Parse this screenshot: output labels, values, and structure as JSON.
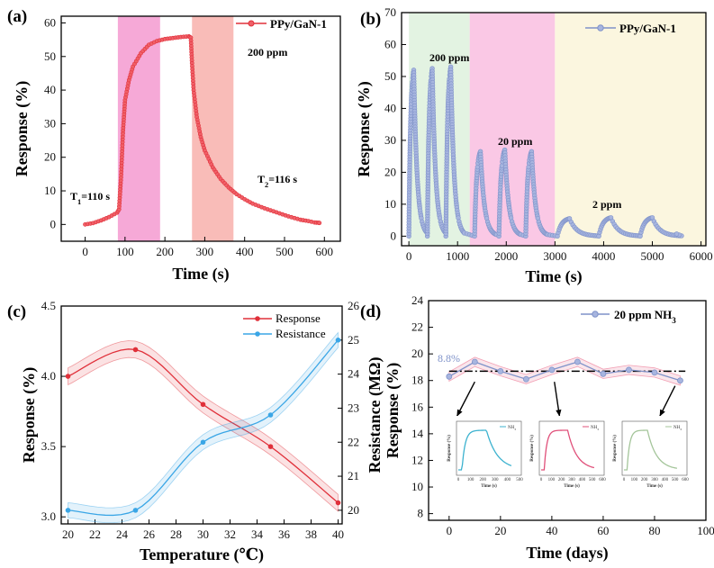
{
  "colors": {
    "ppy": "#e0303a",
    "ppy_b": "#7f92c9",
    "response": "#e0303a",
    "resistance": "#3aa6e6",
    "inset1": "#3cb2cf",
    "inset2": "#e0507a",
    "inset3": "#a4c59a"
  },
  "chart_data": [
    {
      "id": "a",
      "panel_label": "(a)",
      "type": "line",
      "xlabel": "Time (s)",
      "ylabel": "Response (%)",
      "xlim": [
        -60,
        640
      ],
      "ylim": [
        -5,
        62
      ],
      "xticks": [
        "0",
        "100",
        "200",
        "300",
        "400",
        "500",
        "600"
      ],
      "yticks": [
        "0",
        "10",
        "20",
        "30",
        "40",
        "50",
        "60"
      ],
      "legend": "PPy/GaN-1",
      "legend_position": "top-right",
      "annotations": {
        "conc": "200 ppm",
        "t1": "T",
        "t1_sub": "1",
        "t1_rest": "=110 s",
        "t2": "T",
        "t2_sub": "2",
        "t2_rest": "=116 s"
      },
      "shaded": [
        {
          "from": 82,
          "to": 188,
          "color": "pink"
        },
        {
          "from": 268,
          "to": 372,
          "color": "salmon"
        }
      ],
      "series": [
        {
          "name": "PPy/GaN-1",
          "points": [
            [
              0,
              0
            ],
            [
              20,
              0.4
            ],
            [
              40,
              1.2
            ],
            [
              60,
              2.2
            ],
            [
              80,
              3.5
            ],
            [
              85,
              4.5
            ],
            [
              90,
              14
            ],
            [
              95,
              28
            ],
            [
              100,
              37
            ],
            [
              110,
              43
            ],
            [
              120,
              47
            ],
            [
              140,
              51
            ],
            [
              160,
              53.5
            ],
            [
              180,
              54.6
            ],
            [
              200,
              55.2
            ],
            [
              220,
              55.5
            ],
            [
              240,
              55.8
            ],
            [
              260,
              56
            ],
            [
              265,
              55.6
            ],
            [
              268,
              48
            ],
            [
              272,
              40
            ],
            [
              280,
              32
            ],
            [
              290,
              26
            ],
            [
              300,
              22
            ],
            [
              320,
              17
            ],
            [
              340,
              13.5
            ],
            [
              360,
              11
            ],
            [
              380,
              9
            ],
            [
              400,
              7.5
            ],
            [
              420,
              6.2
            ],
            [
              450,
              4.8
            ],
            [
              480,
              3.6
            ],
            [
              510,
              2.4
            ],
            [
              540,
              1.4
            ],
            [
              560,
              1
            ],
            [
              575,
              0.6
            ],
            [
              585,
              0.5
            ],
            [
              590,
              0.4
            ]
          ]
        }
      ]
    },
    {
      "id": "b",
      "panel_label": "(b)",
      "type": "line",
      "xlabel": "Time (s)",
      "ylabel": "Response (%)",
      "xlim": [
        -150,
        6100
      ],
      "ylim": [
        -3,
        70
      ],
      "xticks": [
        "0",
        "1000",
        "2000",
        "3000",
        "4000",
        "5000",
        "6000"
      ],
      "yticks": [
        "0",
        "10",
        "20",
        "30",
        "40",
        "50",
        "60",
        "70"
      ],
      "legend": "PPy/GaN-1",
      "legend_position": "top-right",
      "annotations": {
        "c1": "200 ppm",
        "c2": "20 ppm",
        "c3": "2 ppm"
      },
      "shaded": [
        {
          "from": 0,
          "to": 1250,
          "color": "green"
        },
        {
          "from": 1250,
          "to": 3000,
          "color": "pink"
        },
        {
          "from": 3000,
          "to": 6100,
          "color": "yellow"
        }
      ],
      "cycles": [
        {
          "start": 0,
          "rise": 100,
          "fall": 280,
          "peak": 52
        },
        {
          "start": 380,
          "rise": 100,
          "fall": 280,
          "peak": 52.5
        },
        {
          "start": 760,
          "rise": 100,
          "fall": 280,
          "peak": 53
        },
        {
          "start": 1350,
          "rise": 120,
          "fall": 330,
          "peak": 26.5
        },
        {
          "start": 1850,
          "rise": 120,
          "fall": 330,
          "peak": 27
        },
        {
          "start": 2400,
          "rise": 120,
          "fall": 330,
          "peak": 26.5
        },
        {
          "start": 3050,
          "rise": 250,
          "fall": 600,
          "peak": 5.5
        },
        {
          "start": 3900,
          "rise": 250,
          "fall": 600,
          "peak": 5.8
        },
        {
          "start": 4750,
          "rise": 250,
          "fall": 600,
          "peak": 5.8
        }
      ],
      "series": [
        {
          "name": "PPy/GaN-1"
        }
      ]
    },
    {
      "id": "c",
      "panel_label": "(c)",
      "type": "line",
      "xlabel": "Temperature (℃)",
      "ylabel": "Response (%)",
      "y2label": "Resistance (MΩ)",
      "xlim": [
        19.5,
        40.3
      ],
      "ylim": [
        2.95,
        4.5
      ],
      "y2lim": [
        19.6,
        26
      ],
      "xticks": [
        "20",
        "22",
        "24",
        "26",
        "28",
        "30",
        "32",
        "34",
        "36",
        "38",
        "40"
      ],
      "yticks": [
        "3.0",
        "3.5",
        "4.0",
        "4.5"
      ],
      "y2ticks": [
        "20",
        "21",
        "22",
        "23",
        "24",
        "25",
        "26"
      ],
      "legend": [
        "Response",
        "Resistance"
      ],
      "legend_position": "top-right",
      "series": [
        {
          "name": "Response",
          "x": [
            20,
            25,
            30,
            35,
            40
          ],
          "values": [
            4.0,
            4.19,
            3.8,
            3.5,
            3.1
          ],
          "band": 0.06
        },
        {
          "name": "Resistance",
          "axis": "right",
          "x": [
            20,
            25,
            30,
            35,
            40
          ],
          "values": [
            20,
            20,
            22,
            22.8,
            25
          ],
          "band": 0.22
        }
      ]
    },
    {
      "id": "d",
      "panel_label": "(d)",
      "type": "line",
      "xlabel": "Time (days)",
      "ylabel": "Response (%)",
      "xlim": [
        -8,
        100
      ],
      "ylim": [
        7.5,
        24
      ],
      "xticks": [
        "0",
        "20",
        "40",
        "60",
        "80",
        "100"
      ],
      "yticks": [
        "8",
        "10",
        "12",
        "14",
        "16",
        "18",
        "20",
        "22",
        "24"
      ],
      "legend": "20 ppm NH",
      "legend_sub": "3",
      "legend_position": "top-right",
      "annotations": {
        "variation": "8.8%"
      },
      "mean_line": 18.7,
      "series": [
        {
          "name": "20 ppm NH3",
          "x": [
            0,
            10,
            20,
            30,
            40,
            50,
            60,
            70,
            80,
            90
          ],
          "values": [
            18.3,
            19.4,
            18.7,
            18.1,
            18.8,
            19.4,
            18.5,
            18.8,
            18.6,
            18.0
          ]
        }
      ],
      "insets": [
        {
          "legend": "NH",
          "legend_sub": "3",
          "xlabel": "Time (s)",
          "ylabel": "Response (%)",
          "xticks": [
            "0",
            "100",
            "200",
            "300",
            "400",
            "500"
          ],
          "peak_at": 230,
          "xmax": 500
        },
        {
          "legend": "NH",
          "legend_sub": "3",
          "xlabel": "Time (s)",
          "ylabel": "Response (%)",
          "xticks": [
            "0",
            "100",
            "200",
            "300",
            "400",
            "500",
            "600"
          ],
          "peak_at": 260,
          "xmax": 600
        },
        {
          "legend": "NH",
          "legend_sub": "3",
          "xlabel": "Time (s)",
          "ylabel": "Response (%)",
          "xticks": [
            "0",
            "100",
            "200",
            "300",
            "400",
            "500",
            "600"
          ],
          "peak_at": 230,
          "xmax": 600
        }
      ]
    }
  ]
}
